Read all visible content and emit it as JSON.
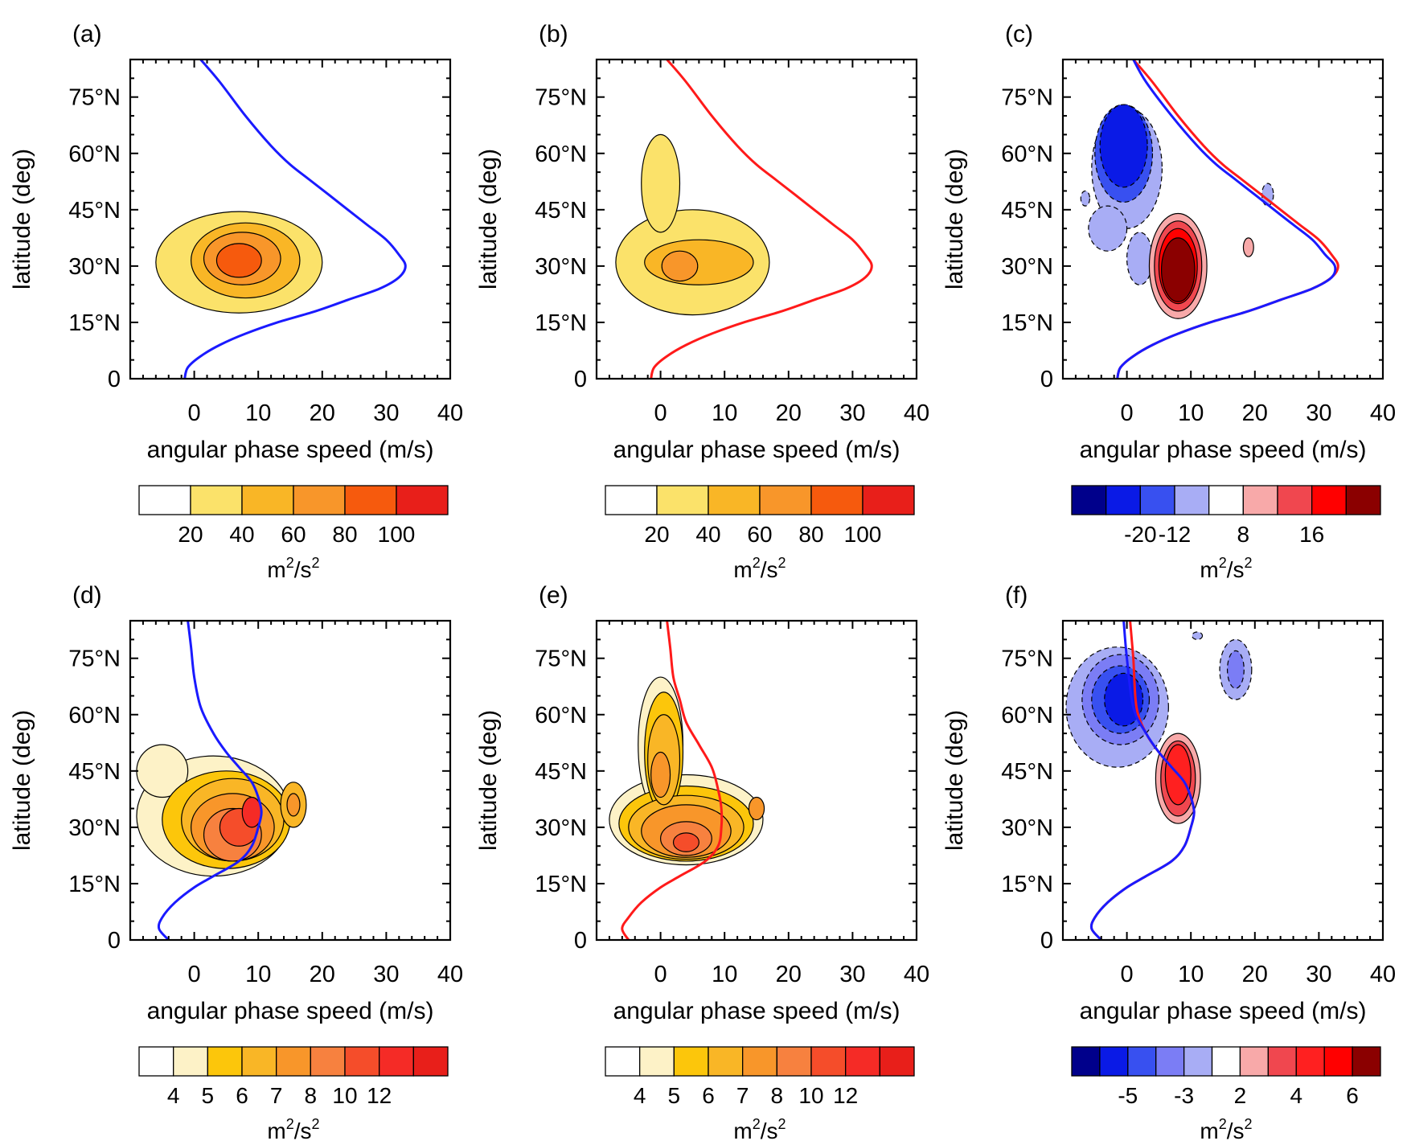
{
  "figure": {
    "colors": {
      "blue_curve": "#1a1aff",
      "red_curve": "#ff1a1a"
    }
  },
  "chart_data": [
    {
      "panel": "(a)",
      "type": "contour",
      "xlabel": "angular phase speed (m/s)",
      "ylabel": "latitude (deg)",
      "xlim": [
        -10,
        40
      ],
      "ylim": [
        0,
        85
      ],
      "xticks": [
        0,
        10,
        20,
        30,
        40
      ],
      "xticklabels": [
        "0",
        "10",
        "20",
        "30",
        "40"
      ],
      "yticks": [
        0,
        15,
        30,
        45,
        60,
        75
      ],
      "yticklabels": [
        "0",
        "15°N",
        "30°N",
        "45°N",
        "60°N",
        "75°N"
      ],
      "curve_color": "blue",
      "curves": [
        {
          "name": "jet",
          "color": "blue",
          "x": [
            -1.5,
            -1,
            1,
            4,
            8,
            13,
            19,
            24,
            29,
            32,
            33,
            32,
            30,
            27,
            24,
            21,
            18,
            15,
            12,
            8,
            4,
            1
          ],
          "y": [
            0,
            3,
            6,
            9,
            12,
            15,
            18,
            21,
            24,
            27,
            30,
            33,
            37,
            41,
            45,
            49,
            53,
            57,
            62,
            70,
            79,
            85
          ]
        }
      ],
      "blobs": [
        {
          "level": 1,
          "cx": 7,
          "cy": 31,
          "rx": 13,
          "ry": 13.5
        },
        {
          "level": 2,
          "cx": 8,
          "cy": 31.5,
          "rx": 8.5,
          "ry": 10
        },
        {
          "level": 3,
          "cx": 7.5,
          "cy": 32,
          "rx": 6,
          "ry": 7
        },
        {
          "level": 4,
          "cx": 7,
          "cy": 31.5,
          "rx": 3.5,
          "ry": 4.5
        }
      ],
      "colorbar": {
        "colors": [
          "#ffffff",
          "#fbe26a",
          "#f9b626",
          "#f8962a",
          "#f65a0d",
          "#e81f1a"
        ],
        "labels": [
          "20",
          "40",
          "60",
          "80",
          "100"
        ],
        "unit_base": "m",
        "unit_exp1": "2",
        "unit_mid": "/s",
        "unit_exp2": "2"
      }
    },
    {
      "panel": "(b)",
      "type": "contour",
      "xlabel": "angular phase speed (m/s)",
      "ylabel": "latitude (deg)",
      "xlim": [
        -10,
        40
      ],
      "ylim": [
        0,
        85
      ],
      "xticks": [
        0,
        10,
        20,
        30,
        40
      ],
      "xticklabels": [
        "0",
        "10",
        "20",
        "30",
        "40"
      ],
      "yticks": [
        0,
        15,
        30,
        45,
        60,
        75
      ],
      "yticklabels": [
        "0",
        "15°N",
        "30°N",
        "45°N",
        "60°N",
        "75°N"
      ],
      "curve_color": "red",
      "curves": [
        {
          "name": "jet",
          "color": "red",
          "x": [
            -1.5,
            -1,
            1,
            4,
            8,
            13,
            19,
            24,
            29,
            32,
            33,
            32,
            30,
            27,
            24,
            21,
            18,
            15,
            12,
            8,
            4,
            1
          ],
          "y": [
            0,
            3,
            6,
            9,
            12,
            15,
            18,
            21,
            24,
            27,
            30,
            33,
            37,
            41,
            45,
            49,
            53,
            57,
            62,
            70,
            79,
            85
          ]
        }
      ],
      "blobs": [
        {
          "level": 1,
          "cx": 5,
          "cy": 31,
          "rx": 12,
          "ry": 14
        },
        {
          "level": 1,
          "cx": 0,
          "cy": 52,
          "rx": 3,
          "ry": 13
        },
        {
          "level": 2,
          "cx": 6,
          "cy": 31,
          "rx": 8.5,
          "ry": 6
        },
        {
          "level": 3,
          "cx": 3,
          "cy": 30,
          "rx": 2.8,
          "ry": 4
        }
      ],
      "colorbar": {
        "colors": [
          "#ffffff",
          "#fbe26a",
          "#f9b626",
          "#f8962a",
          "#f65a0d",
          "#e81f1a"
        ],
        "labels": [
          "20",
          "40",
          "60",
          "80",
          "100"
        ],
        "unit_base": "m",
        "unit_exp1": "2",
        "unit_mid": "/s",
        "unit_exp2": "2"
      }
    },
    {
      "panel": "(c)",
      "type": "contour",
      "xlabel": "angular phase speed (m/s)",
      "ylabel": "latitude (deg)",
      "xlim": [
        -10,
        40
      ],
      "ylim": [
        0,
        85
      ],
      "xticks": [
        0,
        10,
        20,
        30,
        40
      ],
      "xticklabels": [
        "0",
        "10",
        "20",
        "30",
        "40"
      ],
      "yticks": [
        0,
        15,
        30,
        45,
        60,
        75
      ],
      "yticklabels": [
        "0",
        "15°N",
        "30°N",
        "45°N",
        "60°N",
        "75°N"
      ],
      "curve_color": "both",
      "curves": [
        {
          "name": "jet-red",
          "color": "red",
          "x": [
            -1.5,
            -1,
            1,
            4,
            8,
            13,
            19,
            24,
            29,
            32,
            33,
            32,
            30,
            27,
            24,
            21,
            18,
            15,
            12,
            8,
            4,
            1
          ],
          "y": [
            0,
            3,
            6,
            9,
            12,
            15,
            18,
            21,
            24,
            27,
            30,
            33,
            37,
            41,
            45,
            49,
            53,
            57,
            62,
            70,
            79,
            85
          ]
        },
        {
          "name": "jet-blue",
          "color": "blue",
          "x": [
            -1.5,
            -1,
            1,
            4,
            8,
            13,
            19,
            24,
            29,
            32,
            32.5,
            31,
            29,
            26,
            23,
            20,
            17,
            14,
            11,
            7,
            3,
            1
          ],
          "y": [
            0,
            3,
            6,
            9,
            12,
            15,
            18,
            21,
            24,
            27,
            30,
            33,
            37,
            41,
            45,
            49,
            53,
            57,
            62,
            70,
            79,
            85
          ]
        }
      ],
      "blobs": [
        {
          "level": 1,
          "cx": 0,
          "cy": 56,
          "rx": 5.5,
          "ry": 16
        },
        {
          "level": 1,
          "cx": -3,
          "cy": 40,
          "rx": 3,
          "ry": 6
        },
        {
          "level": 1,
          "cx": 2,
          "cy": 32,
          "rx": 2,
          "ry": 7
        },
        {
          "level": 2,
          "cx": -0.5,
          "cy": 60,
          "rx": 4.5,
          "ry": 13
        },
        {
          "level": 3,
          "cx": -0.5,
          "cy": 62,
          "rx": 3.7,
          "ry": 11
        },
        {
          "level": 1,
          "cx": 8,
          "cy": 30,
          "rx": 4.5,
          "ry": 14
        },
        {
          "level": 2,
          "cx": 8,
          "cy": 30,
          "rx": 3.7,
          "ry": 12
        },
        {
          "level": 3,
          "cx": 8,
          "cy": 30,
          "rx": 3.0,
          "ry": 10
        },
        {
          "level": 4,
          "cx": 8,
          "cy": 29,
          "rx": 2.6,
          "ry": 8.5
        },
        {
          "level": 1,
          "cx": -6.5,
          "cy": 48,
          "rx": 0.7,
          "ry": 2
        },
        {
          "level": 1,
          "cx": 22,
          "cy": 49,
          "rx": 0.9,
          "ry": 3
        },
        {
          "level": 1,
          "cx": 19,
          "cy": 35,
          "rx": 0.8,
          "ry": 2.5
        }
      ],
      "blob_signs": [
        -1,
        -1,
        -1,
        -1,
        -1,
        1,
        1,
        1,
        1,
        -1,
        -1,
        1
      ],
      "colorbar": {
        "colors": [
          "#00008b",
          "#0a1ae6",
          "#3850f0",
          "#a8adf5",
          "#ffffff",
          "#f8a9a9",
          "#f0474f",
          "#ff0000",
          "#8b0000"
        ],
        "labels": [
          "-20",
          "-12",
          "8",
          "16"
        ],
        "unit_base": "m",
        "unit_exp1": "2",
        "unit_mid": "/s",
        "unit_exp2": "2"
      }
    },
    {
      "panel": "(d)",
      "type": "contour",
      "xlabel": "angular phase speed (m/s)",
      "ylabel": "latitude (deg)",
      "xlim": [
        -10,
        40
      ],
      "ylim": [
        0,
        85
      ],
      "xticks": [
        0,
        10,
        20,
        30,
        40
      ],
      "xticklabels": [
        "0",
        "10",
        "20",
        "30",
        "40"
      ],
      "yticks": [
        0,
        15,
        30,
        45,
        60,
        75
      ],
      "yticklabels": [
        "0",
        "15°N",
        "30°N",
        "45°N",
        "60°N",
        "75°N"
      ],
      "curve_color": "blue",
      "curves": [
        {
          "name": "jet",
          "color": "blue",
          "x": [
            -4,
            -5.5,
            -5,
            -3,
            0,
            3,
            7,
            9,
            10,
            10.5,
            10,
            9,
            7,
            5,
            3,
            1,
            0,
            -0.5,
            -1
          ],
          "y": [
            0,
            3,
            6,
            10,
            14,
            17,
            21,
            25,
            30,
            34,
            38,
            42,
            46,
            50,
            55,
            62,
            70,
            78,
            85
          ]
        }
      ],
      "blobs": [
        {
          "level": 1,
          "cx": 3,
          "cy": 33,
          "rx": 12,
          "ry": 16
        },
        {
          "level": 1,
          "cx": -5,
          "cy": 45,
          "rx": 4,
          "ry": 7
        },
        {
          "level": 2,
          "cx": 5,
          "cy": 32,
          "rx": 10,
          "ry": 13
        },
        {
          "level": 3,
          "cx": 6,
          "cy": 32,
          "rx": 8,
          "ry": 11
        },
        {
          "level": 4,
          "cx": 6,
          "cy": 30,
          "rx": 6.5,
          "ry": 9
        },
        {
          "level": 5,
          "cx": 6,
          "cy": 28,
          "rx": 4.5,
          "ry": 7
        },
        {
          "level": 6,
          "cx": 7,
          "cy": 30,
          "rx": 3,
          "ry": 5
        },
        {
          "level": 7,
          "cx": 9,
          "cy": 34,
          "rx": 1.5,
          "ry": 4
        },
        {
          "level": 3,
          "cx": 15.5,
          "cy": 36,
          "rx": 2,
          "ry": 6
        },
        {
          "level": 4,
          "cx": 15.5,
          "cy": 36,
          "rx": 1,
          "ry": 3
        }
      ],
      "colorbar": {
        "colors": [
          "#ffffff",
          "#fdf2c7",
          "#fcc60b",
          "#f9b626",
          "#f8962a",
          "#f7813f",
          "#f54d2a",
          "#f52b26",
          "#e81f1a"
        ],
        "labels": [
          "4",
          "5",
          "6",
          "7",
          "8",
          "10",
          "12"
        ],
        "unit_base": "m",
        "unit_exp1": "2",
        "unit_mid": "/s",
        "unit_exp2": "2"
      }
    },
    {
      "panel": "(e)",
      "type": "contour",
      "xlabel": "angular phase speed (m/s)",
      "ylabel": "latitude (deg)",
      "xlim": [
        -10,
        40
      ],
      "ylim": [
        0,
        85
      ],
      "xticks": [
        0,
        10,
        20,
        30,
        40
      ],
      "xticklabels": [
        "0",
        "10",
        "20",
        "30",
        "40"
      ],
      "yticks": [
        0,
        15,
        30,
        45,
        60,
        75
      ],
      "yticklabels": [
        "0",
        "15°N",
        "30°N",
        "45°N",
        "60°N",
        "75°N"
      ],
      "curve_color": "red",
      "curves": [
        {
          "name": "jet",
          "color": "red",
          "x": [
            -5,
            -6,
            -5,
            -3,
            0,
            3,
            7,
            9,
            9.5,
            9.5,
            9,
            8,
            6,
            4,
            3,
            2,
            1.5,
            1
          ],
          "y": [
            0,
            3,
            6,
            10,
            14,
            17,
            21,
            25,
            30,
            35,
            40,
            46,
            52,
            58,
            64,
            70,
            78,
            85
          ]
        }
      ],
      "blobs": [
        {
          "level": 1,
          "cx": 4,
          "cy": 32,
          "rx": 12,
          "ry": 12
        },
        {
          "level": 1,
          "cx": 0,
          "cy": 52,
          "rx": 3.5,
          "ry": 18
        },
        {
          "level": 2,
          "cx": 4,
          "cy": 31,
          "rx": 10.5,
          "ry": 10
        },
        {
          "level": 2,
          "cx": 0.5,
          "cy": 50,
          "rx": 3,
          "ry": 16
        },
        {
          "level": 3,
          "cx": 4,
          "cy": 30,
          "rx": 9,
          "ry": 8.5
        },
        {
          "level": 3,
          "cx": 0.5,
          "cy": 48,
          "rx": 2.5,
          "ry": 12
        },
        {
          "level": 4,
          "cx": 4,
          "cy": 29,
          "rx": 7,
          "ry": 7
        },
        {
          "level": 4,
          "cx": 0,
          "cy": 44,
          "rx": 1.5,
          "ry": 6
        },
        {
          "level": 5,
          "cx": 4,
          "cy": 27,
          "rx": 4,
          "ry": 4.5
        },
        {
          "level": 6,
          "cx": 4,
          "cy": 26,
          "rx": 2,
          "ry": 2.5
        },
        {
          "level": 4,
          "cx": 15,
          "cy": 35,
          "rx": 1.2,
          "ry": 3
        }
      ],
      "colorbar": {
        "colors": [
          "#ffffff",
          "#fdf2c7",
          "#fcc60b",
          "#f9b626",
          "#f8962a",
          "#f7813f",
          "#f54d2a",
          "#f52b26",
          "#e81f1a"
        ],
        "labels": [
          "4",
          "5",
          "6",
          "7",
          "8",
          "10",
          "12"
        ],
        "unit_base": "m",
        "unit_exp1": "2",
        "unit_mid": "/s",
        "unit_exp2": "2"
      }
    },
    {
      "panel": "(f)",
      "type": "contour",
      "xlabel": "angular phase speed (m/s)",
      "ylabel": "latitude (deg)",
      "xlim": [
        -10,
        40
      ],
      "ylim": [
        0,
        85
      ],
      "xticks": [
        0,
        10,
        20,
        30,
        40
      ],
      "xticklabels": [
        "0",
        "10",
        "20",
        "30",
        "40"
      ],
      "yticks": [
        0,
        15,
        30,
        45,
        60,
        75
      ],
      "yticklabels": [
        "0",
        "15°N",
        "30°N",
        "45°N",
        "60°N",
        "75°N"
      ],
      "curve_color": "both",
      "curves": [
        {
          "name": "jet-red",
          "color": "red",
          "x": [
            -4,
            -5.5,
            -5,
            -3,
            0,
            3,
            7,
            9,
            10,
            10.5,
            10,
            9,
            7,
            5,
            3,
            1.5,
            1,
            0.5
          ],
          "y": [
            0,
            3,
            6,
            10,
            14,
            17,
            21,
            25,
            30,
            34,
            38,
            42,
            46,
            50,
            55,
            62,
            75,
            85
          ]
        },
        {
          "name": "jet-blue",
          "color": "blue",
          "x": [
            -4,
            -5.5,
            -5,
            -3,
            0,
            3,
            7,
            9,
            10,
            10.5,
            10,
            9,
            7,
            5,
            3,
            1,
            0,
            -0.5
          ],
          "y": [
            0,
            3,
            6,
            10,
            14,
            17,
            21,
            25,
            30,
            34,
            38,
            42,
            46,
            50,
            55,
            62,
            75,
            85
          ]
        }
      ],
      "blobs": [
        {
          "level": 1,
          "cx": -1.5,
          "cy": 62,
          "rx": 8,
          "ry": 16
        },
        {
          "level": 2,
          "cx": -1,
          "cy": 64,
          "rx": 6,
          "ry": 12
        },
        {
          "level": 3,
          "cx": -1,
          "cy": 64,
          "rx": 4.5,
          "ry": 9
        },
        {
          "level": 4,
          "cx": -0.5,
          "cy": 64,
          "rx": 3,
          "ry": 7
        },
        {
          "level": 1,
          "cx": 17,
          "cy": 72,
          "rx": 2.5,
          "ry": 8
        },
        {
          "level": 2,
          "cx": 17,
          "cy": 72,
          "rx": 1.3,
          "ry": 5
        },
        {
          "level": 1,
          "cx": 8,
          "cy": 43,
          "rx": 3.5,
          "ry": 12
        },
        {
          "level": 2,
          "cx": 8,
          "cy": 43,
          "rx": 2.7,
          "ry": 10
        },
        {
          "level": 3,
          "cx": 8,
          "cy": 44,
          "rx": 2,
          "ry": 8
        },
        {
          "level": 1,
          "cx": 11,
          "cy": 81,
          "rx": 0.8,
          "ry": 1
        }
      ],
      "blob_signs": [
        -1,
        -1,
        -1,
        -1,
        -1,
        -1,
        1,
        1,
        1,
        -1
      ],
      "colorbar": {
        "colors": [
          "#00008b",
          "#0a1ae6",
          "#3850f0",
          "#7b7df5",
          "#a8adf5",
          "#ffffff",
          "#f8a9a9",
          "#f0474f",
          "#ff2020",
          "#ff0000",
          "#8b0000"
        ],
        "labels": [
          "-5",
          "-3",
          "2",
          "4",
          "6"
        ],
        "unit_base": "m",
        "unit_exp1": "2",
        "unit_mid": "/s",
        "unit_exp2": "2"
      }
    }
  ]
}
